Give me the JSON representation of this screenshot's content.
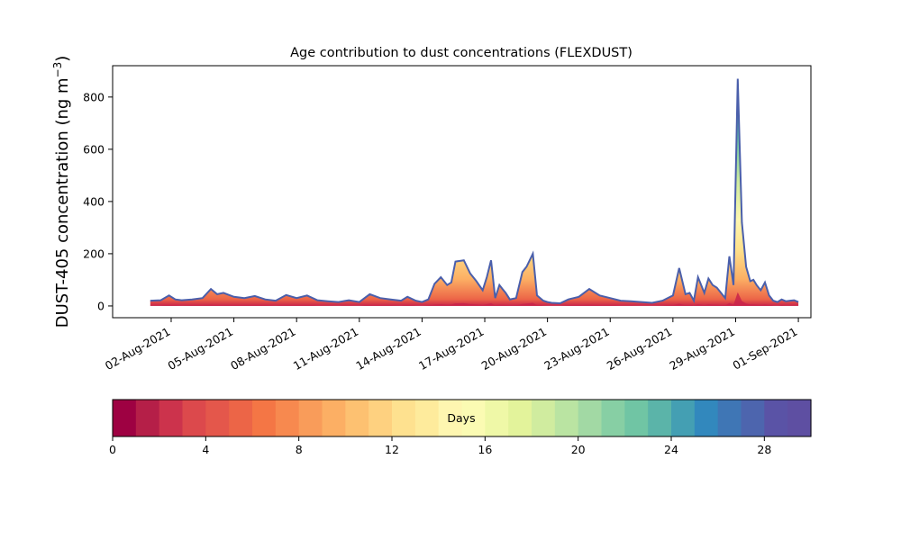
{
  "chart_data": {
    "type": "area",
    "title": "Age contribution to dust concentrations (FLEXDUST)",
    "ylabel": "DUST-405 concentration (ng m",
    "ylabel_sup": "−3",
    "ylabel_close": ")",
    "ylim": [
      -45,
      920
    ],
    "yticks": [
      0,
      200,
      400,
      600,
      800
    ],
    "xlim_days": [
      -1.8,
      31.6
    ],
    "xticks": [
      {
        "day": 1,
        "label": "02-Aug-2021"
      },
      {
        "day": 4,
        "label": "05-Aug-2021"
      },
      {
        "day": 7,
        "label": "08-Aug-2021"
      },
      {
        "day": 10,
        "label": "11-Aug-2021"
      },
      {
        "day": 13,
        "label": "14-Aug-2021"
      },
      {
        "day": 16,
        "label": "17-Aug-2021"
      },
      {
        "day": 19,
        "label": "20-Aug-2021"
      },
      {
        "day": 22,
        "label": "23-Aug-2021"
      },
      {
        "day": 25,
        "label": "26-Aug-2021"
      },
      {
        "day": 28,
        "label": "29-Aug-2021"
      },
      {
        "day": 31,
        "label": "01-Sep-2021"
      }
    ],
    "total_concentration": {
      "day": [
        0.0,
        0.5,
        0.9,
        1.2,
        1.5,
        2.0,
        2.5,
        2.9,
        3.2,
        3.5,
        4.0,
        4.5,
        5.0,
        5.5,
        6.0,
        6.5,
        7.0,
        7.5,
        8.0,
        8.5,
        9.0,
        9.5,
        10.0,
        10.5,
        11.0,
        11.5,
        12.0,
        12.3,
        12.7,
        13.0,
        13.3,
        13.6,
        13.9,
        14.2,
        14.4,
        14.6,
        15.0,
        15.3,
        15.6,
        15.9,
        16.1,
        16.3,
        16.5,
        16.7,
        16.85,
        17.0,
        17.2,
        17.5,
        17.8,
        18.0,
        18.3,
        18.5,
        18.8,
        19.0,
        19.2,
        19.6,
        20.0,
        20.5,
        21.0,
        21.5,
        22.0,
        22.5,
        23.0,
        23.5,
        24.0,
        24.5,
        25.0,
        25.3,
        25.6,
        25.8,
        26.0,
        26.2,
        26.5,
        26.7,
        26.9,
        27.1,
        27.3,
        27.5,
        27.7,
        27.9,
        28.1,
        28.3,
        28.5,
        28.7,
        28.85,
        29.0,
        29.2,
        29.4,
        29.6,
        29.8,
        30.0,
        30.2,
        30.4,
        30.6,
        30.8,
        31.0
      ],
      "value": [
        20,
        22,
        40,
        25,
        22,
        25,
        30,
        65,
        45,
        50,
        35,
        30,
        38,
        25,
        20,
        42,
        30,
        40,
        22,
        18,
        15,
        22,
        15,
        45,
        30,
        25,
        20,
        35,
        20,
        15,
        25,
        85,
        110,
        80,
        90,
        170,
        175,
        125,
        95,
        60,
        110,
        175,
        30,
        80,
        65,
        50,
        25,
        30,
        130,
        150,
        200,
        40,
        20,
        15,
        12,
        10,
        25,
        35,
        65,
        40,
        30,
        20,
        18,
        15,
        12,
        20,
        40,
        145,
        45,
        50,
        20,
        110,
        50,
        105,
        80,
        70,
        50,
        30,
        190,
        80,
        870,
        320,
        150,
        95,
        100,
        80,
        60,
        90,
        40,
        20,
        15,
        25,
        18,
        20,
        22,
        15
      ]
    },
    "colorbar": {
      "label": "Days",
      "range": [
        0,
        30
      ],
      "ticks": [
        0,
        4,
        8,
        12,
        16,
        20,
        24,
        28
      ],
      "colors": [
        "#9e0142",
        "#b51f48",
        "#cc334c",
        "#dc494c",
        "#e4574b",
        "#ec6547",
        "#f47645",
        "#f7894f",
        "#f99c5a",
        "#fcaf64",
        "#fdc171",
        "#fed180",
        "#fee18f",
        "#feeb9c",
        "#fef6b0",
        "#fbfbb3",
        "#eff8a7",
        "#e3f39b",
        "#d0ec9f",
        "#bae4a2",
        "#a2d9a4",
        "#87cfa4",
        "#70c5a4",
        "#5bb4a9",
        "#449fb3",
        "#3288bd",
        "#3f76b5",
        "#4d65ae",
        "#5a53a6",
        "#5e4fa2"
      ]
    }
  }
}
